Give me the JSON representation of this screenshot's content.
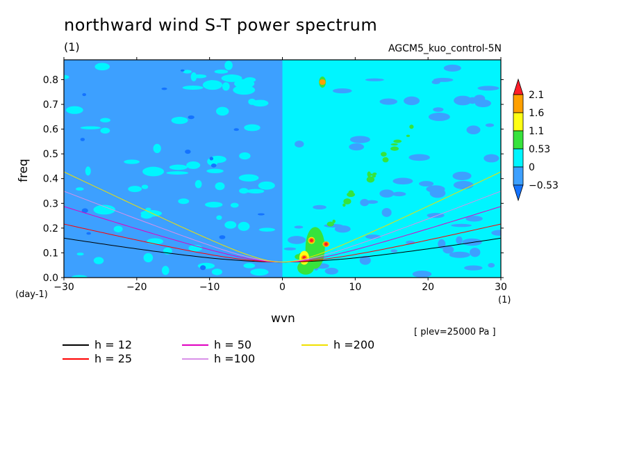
{
  "title": "northward wind S-T power spectrum",
  "units_label_top": "(1)",
  "run_name": "AGCM5_kuo_control-5N",
  "plev_note": "[ plev=25000 Pa ]",
  "colors": {
    "lt_neg": "#1473ff",
    "neg": "#3da0ff",
    "zero": "#00f5ff",
    "c053": "#37e33c",
    "c11": "#ffff14",
    "c16": "#ffa000",
    "c21": "#ff1e28"
  },
  "chart_data": {
    "type": "heatmap",
    "xlabel": "wvn",
    "ylabel": "freq",
    "x_units": "(1)",
    "y_units": "(day-1)",
    "xlim": [
      -30,
      30
    ],
    "ylim": [
      0,
      0.88
    ],
    "x_ticks": [
      -30,
      -20,
      -10,
      0,
      10,
      20,
      30
    ],
    "y_ticks": [
      0.0,
      0.1,
      0.2,
      0.3,
      0.4,
      0.5,
      0.6,
      0.7,
      0.8
    ],
    "colorbar": {
      "levels": [
        "2.1",
        "1.6",
        "1.1",
        "0.53",
        "0",
        "-0.53"
      ],
      "colors": [
        "#1473ff",
        "#3da0ff",
        "#00f5ff",
        "#37e33c",
        "#ffff14",
        "#ffa000",
        "#ff1e28"
      ]
    },
    "regions": [
      {
        "label": "dominant westward half (x < 0)",
        "level": "-0.53 to 0"
      },
      {
        "label": "dominant eastward half (x > 0)",
        "level": "0 to 0.53"
      }
    ],
    "peaks": [
      {
        "x": 3.0,
        "y": 0.08,
        "level": "2.1"
      },
      {
        "x": 4.0,
        "y": 0.15,
        "level": "2.1"
      },
      {
        "x": 6.0,
        "y": 0.135,
        "level": "2.1"
      },
      {
        "x": 5.5,
        "y": 0.79,
        "level": "1.6"
      }
    ],
    "series": [
      {
        "name": "h = 12",
        "color": "#000000",
        "h": 12
      },
      {
        "name": "h = 25",
        "color": "#ff0000",
        "h": 25
      },
      {
        "name": "h = 50",
        "color": "#e000c0",
        "h": 50
      },
      {
        "name": "h =100",
        "color": "#d890e8",
        "h": 100
      },
      {
        "name": "h =200",
        "color": "#f0e000",
        "h": 200
      }
    ]
  }
}
